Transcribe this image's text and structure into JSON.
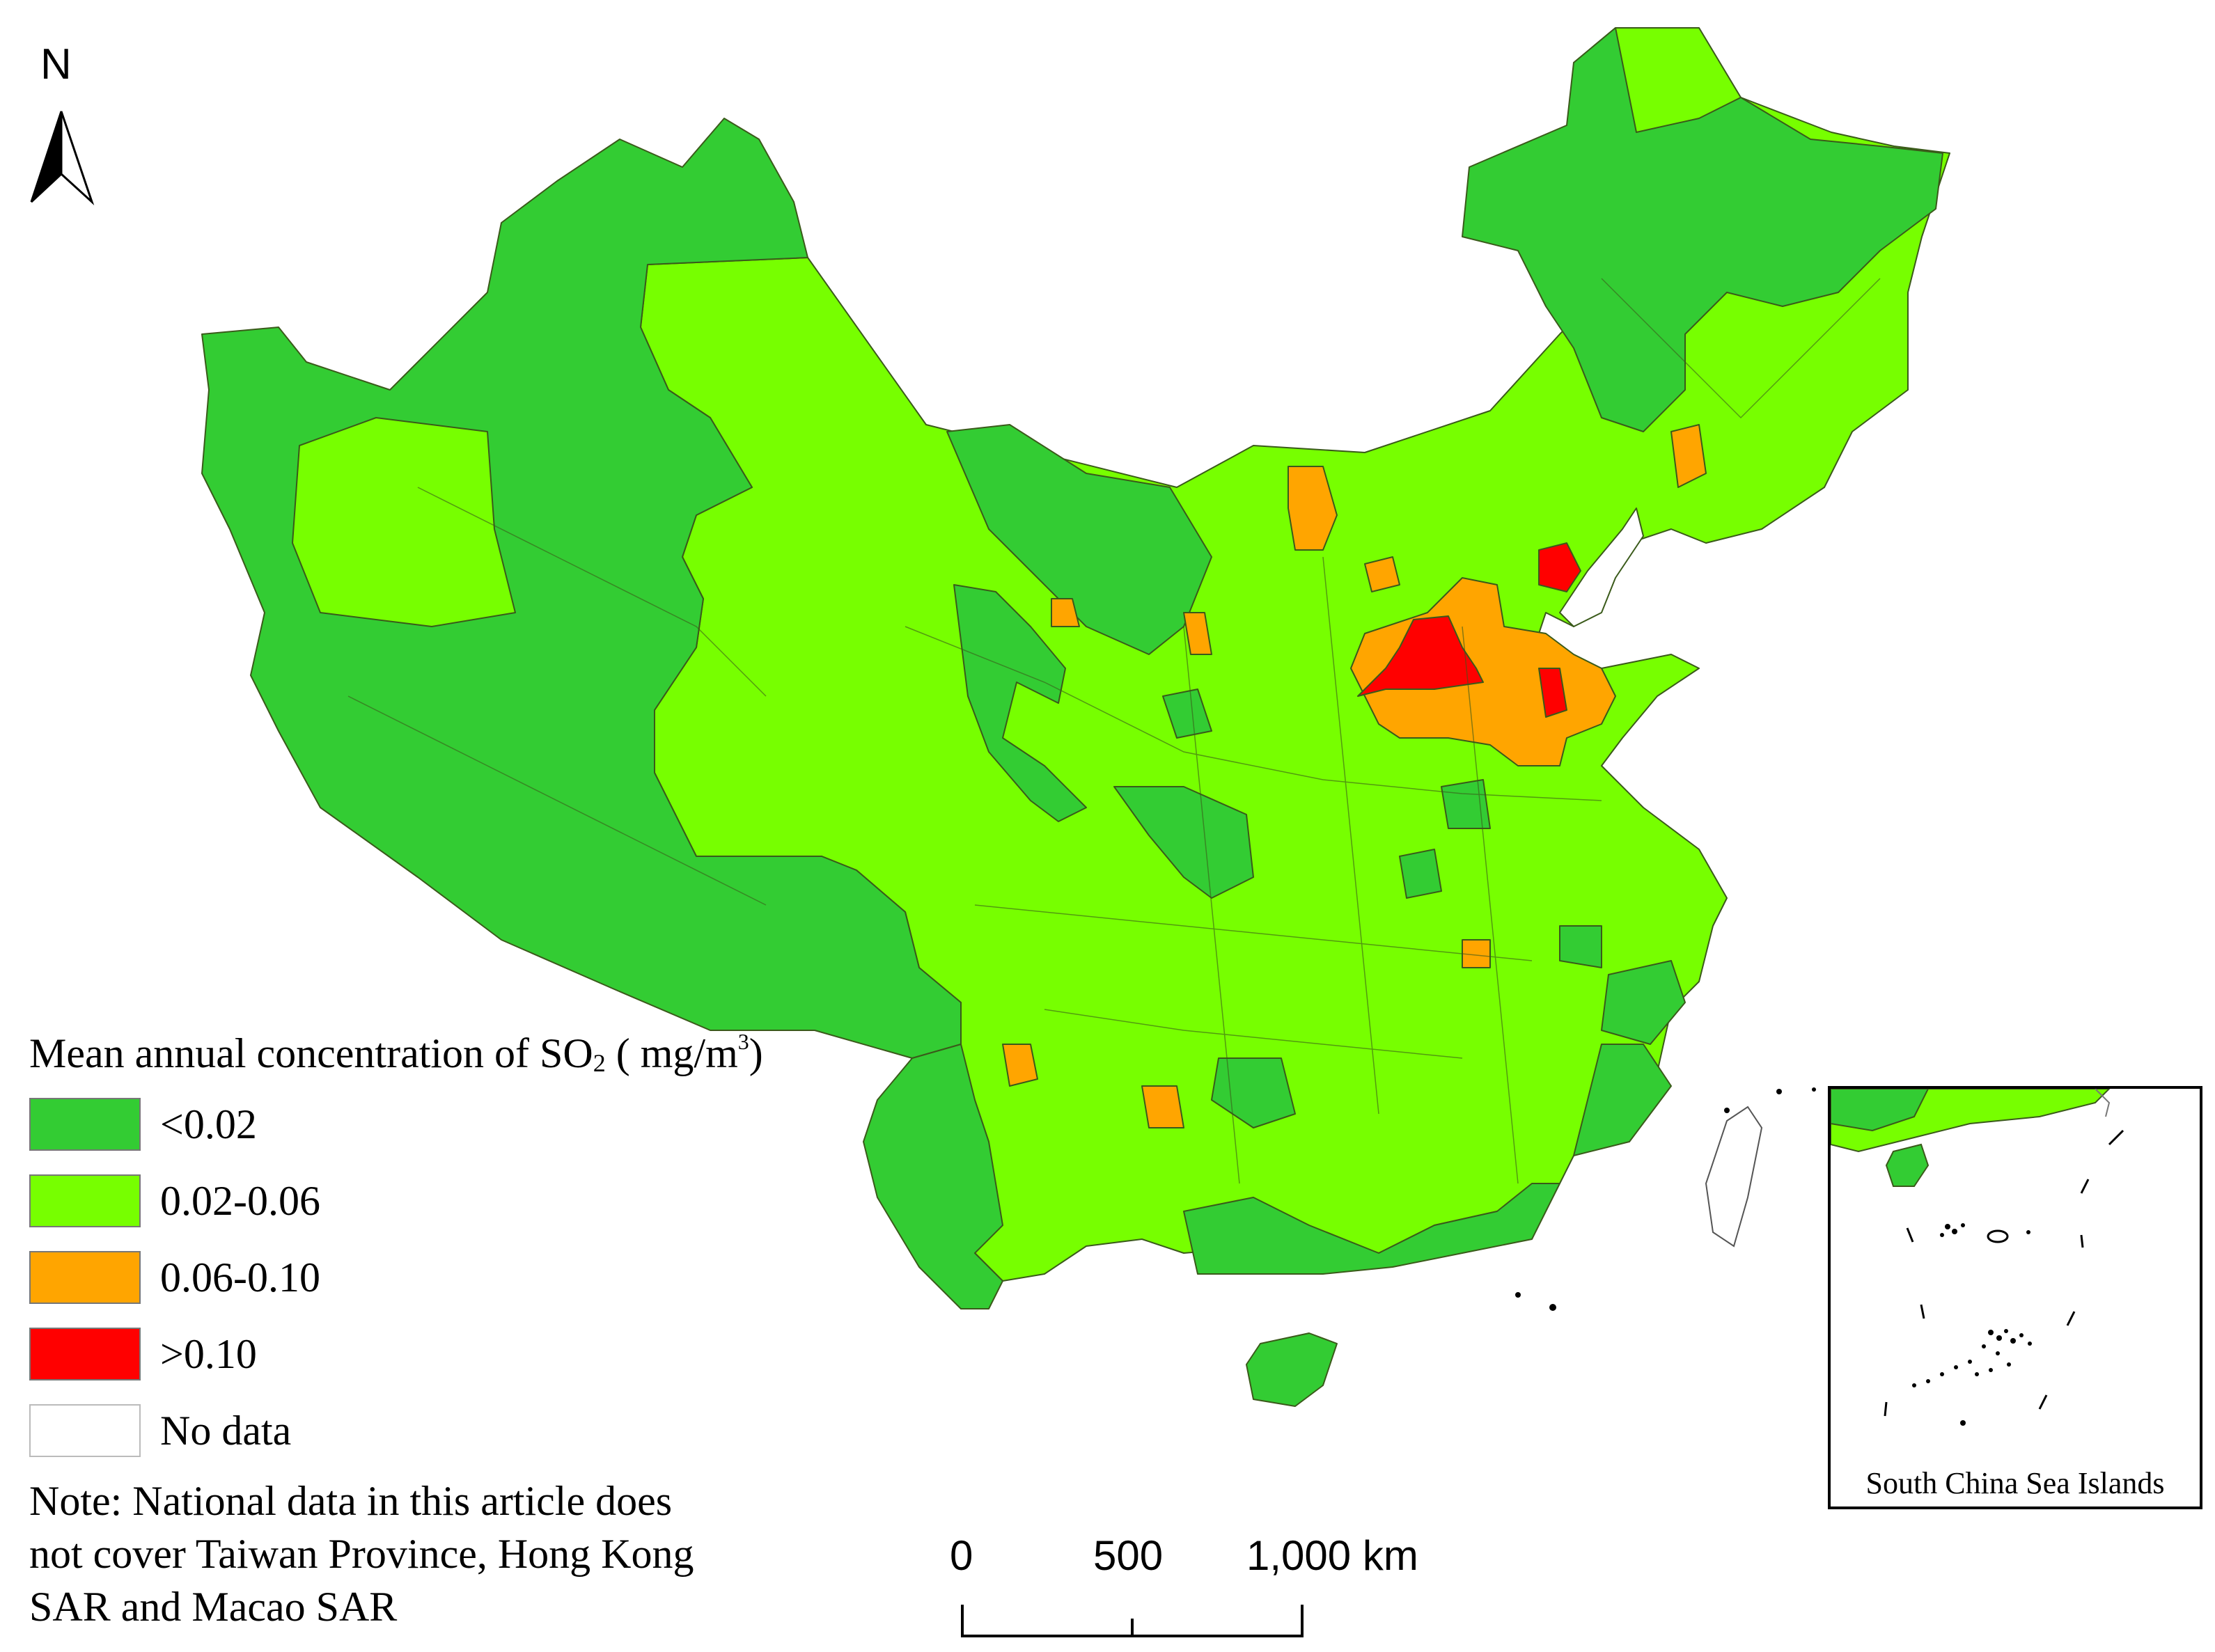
{
  "north_arrow": {
    "label": "N"
  },
  "legend": {
    "title_prefix": "Mean annual concentration of SO",
    "title_subscript": "2",
    "title_unit_open": " ( mg/m",
    "title_unit_sup": "3",
    "title_unit_close": ")",
    "items": [
      {
        "label": "<0.02",
        "color": "#33cc33"
      },
      {
        "label": "0.02-0.06",
        "color": "#77ff00"
      },
      {
        "label": "0.06-0.10",
        "color": "#ffa500"
      },
      {
        "label": ">0.10",
        "color": "#ff0000"
      },
      {
        "label": "No data",
        "color": "#ffffff"
      }
    ]
  },
  "note": {
    "line1": "Note: National data in this article does",
    "line2": "not cover Taiwan Province, Hong Kong",
    "line3": "SAR and Macao SAR"
  },
  "scale_bar": {
    "ticks": [
      "0",
      "500",
      "1,000 km"
    ]
  },
  "inset": {
    "label": "South China Sea Islands"
  },
  "colors": {
    "boundary": "#3a5a1a",
    "outline": "#444444"
  }
}
